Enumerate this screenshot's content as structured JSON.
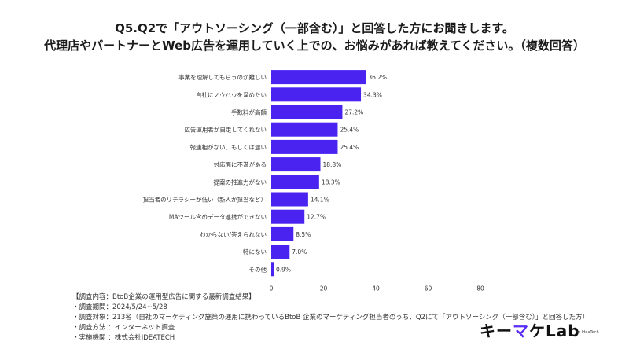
{
  "title_line1": "Q5.Q2で「アウトソーシング（一部含む）」と回答した方にお聞きします。",
  "title_line2": "代理店やパートナーとWeb広告を運用していく上での、お悩みがあれば教えてください。（複数回答）",
  "chart_data": {
    "type": "bar",
    "orientation": "horizontal",
    "categories": [
      "事業を理解してもらうのが難しい",
      "自社にノウハウを溜めたい",
      "手数料が高額",
      "広告運用者が自走してくれない",
      "報連相がない、もしくは遅い",
      "対応面に不満がある",
      "提案の推進力がない",
      "担当者のリテラシーが低い（新人が担当など）",
      "MAツール含めデータ連携ができない",
      "わからない/答えられない",
      "特にない",
      "その他"
    ],
    "values": [
      36.2,
      34.3,
      27.2,
      25.4,
      25.4,
      18.8,
      18.3,
      14.1,
      12.7,
      8.5,
      7.0,
      0.9
    ],
    "value_labels": [
      "36.2%",
      "34.3%",
      "27.2%",
      "25.4%",
      "25.4%",
      "18.8%",
      "18.3%",
      "14.1%",
      "12.7%",
      "8.5%",
      "7.0%",
      "0.9%"
    ],
    "x_ticks": [
      0,
      20,
      40,
      60,
      80
    ],
    "xlim": [
      0,
      80
    ],
    "grid": false,
    "bar_color": "#4a23f0"
  },
  "notes": [
    "【調査内容：BtoB企業の運用型広告に関する最新調査結果】",
    "・調査期間：2024/5/24~5/28",
    "・調査対象：213名（自社のマーケティング施策の運用に携わっているBtoB 企業のマーケティング担当者のうち、Q2にて「アウトソーシング（一部含む）」と回答した方）",
    "・調査方法 ：インターネット調査",
    "・実施機関 ：株式会社IDEATECH"
  ],
  "logo": {
    "main_a": "キー",
    "main_b": "マ",
    "main_c": "ケLab",
    "sub": "by IdeaTech"
  }
}
